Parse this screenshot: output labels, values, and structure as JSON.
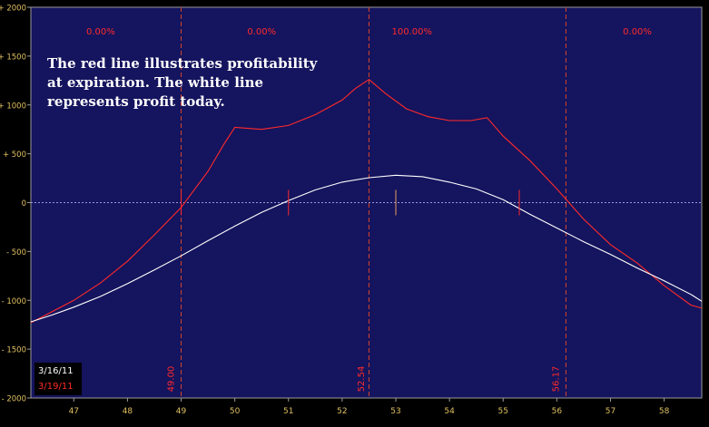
{
  "chart_data": {
    "type": "line",
    "xlim": [
      46.2,
      58.7
    ],
    "ylim": [
      -2000,
      2000
    ],
    "x_ticks": [
      "47",
      "48",
      "49",
      "50",
      "51",
      "52",
      "53",
      "54",
      "55",
      "56",
      "57",
      "58"
    ],
    "y_ticks": [
      "+ 2000",
      "+ 1500",
      "+ 1000",
      "+ 500",
      "0",
      "- 500",
      "- 1000",
      "- 1500",
      "- 2000"
    ],
    "y_tick_values": [
      2000,
      1500,
      1000,
      500,
      0,
      -500,
      -1000,
      -1500,
      -2000
    ],
    "zone_labels": [
      {
        "x": 47.5,
        "text": "0.00%"
      },
      {
        "x": 50.5,
        "text": "0.00%"
      },
      {
        "x": 53.3,
        "text": "100.00%"
      },
      {
        "x": 57.5,
        "text": "0.00%"
      }
    ],
    "breakevens": [
      {
        "x": 49.0,
        "label": "49.00"
      },
      {
        "x": 52.54,
        "label": "52.54"
      },
      {
        "x": 56.17,
        "label": "56.17"
      }
    ],
    "vertical_dashed_lines": [
      49.0,
      52.5,
      56.17
    ],
    "short_ticks": [
      49.0,
      51.0,
      53.0,
      55.3
    ],
    "legend": [
      {
        "label": "3/16/11",
        "color": "#ffffff"
      },
      {
        "label": "3/19/11",
        "color": "#ff2a2a"
      }
    ],
    "series": [
      {
        "color": "#ff2a2a",
        "points": [
          [
            46.2,
            -1230
          ],
          [
            47.0,
            -1000
          ],
          [
            47.5,
            -820
          ],
          [
            48.0,
            -600
          ],
          [
            48.5,
            -330
          ],
          [
            49.0,
            -50
          ],
          [
            49.5,
            320
          ],
          [
            49.8,
            600
          ],
          [
            50.0,
            770
          ],
          [
            50.5,
            750
          ],
          [
            51.0,
            790
          ],
          [
            51.5,
            900
          ],
          [
            52.0,
            1050
          ],
          [
            52.25,
            1170
          ],
          [
            52.5,
            1260
          ],
          [
            52.8,
            1120
          ],
          [
            53.2,
            960
          ],
          [
            53.6,
            880
          ],
          [
            54.0,
            840
          ],
          [
            54.4,
            840
          ],
          [
            54.7,
            870
          ],
          [
            55.0,
            680
          ],
          [
            55.5,
            430
          ],
          [
            56.0,
            140
          ],
          [
            56.5,
            -170
          ],
          [
            57.0,
            -430
          ],
          [
            57.5,
            -620
          ],
          [
            58.0,
            -850
          ],
          [
            58.5,
            -1050
          ],
          [
            58.7,
            -1080
          ]
        ]
      },
      {
        "color": "#ffffff",
        "points": [
          [
            46.2,
            -1220
          ],
          [
            46.6,
            -1150
          ],
          [
            47.0,
            -1070
          ],
          [
            47.5,
            -960
          ],
          [
            48.0,
            -830
          ],
          [
            48.5,
            -690
          ],
          [
            49.0,
            -545
          ],
          [
            49.5,
            -390
          ],
          [
            50.0,
            -240
          ],
          [
            50.5,
            -100
          ],
          [
            51.0,
            20
          ],
          [
            51.5,
            130
          ],
          [
            52.0,
            210
          ],
          [
            52.5,
            255
          ],
          [
            53.0,
            280
          ],
          [
            53.5,
            265
          ],
          [
            54.0,
            210
          ],
          [
            54.5,
            140
          ],
          [
            55.0,
            30
          ],
          [
            55.5,
            -120
          ],
          [
            56.0,
            -260
          ],
          [
            56.5,
            -400
          ],
          [
            57.0,
            -530
          ],
          [
            57.5,
            -670
          ],
          [
            58.0,
            -800
          ],
          [
            58.5,
            -940
          ],
          [
            58.7,
            -1010
          ]
        ]
      }
    ]
  },
  "annotation": "The red line illustrates profitability\nat expiration. The white line\nrepresents profit today."
}
